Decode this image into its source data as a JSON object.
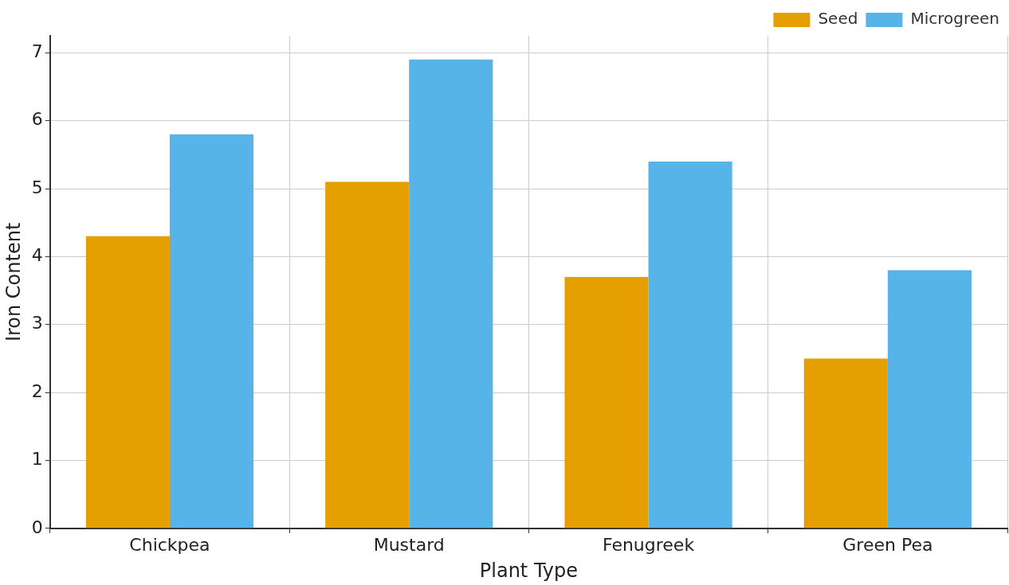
{
  "chart_data": {
    "type": "bar",
    "xlabel": "Plant Type",
    "ylabel": "Iron Content",
    "categories": [
      "Chickpea",
      "Mustard",
      "Fenugreek",
      "Green Pea"
    ],
    "series": [
      {
        "name": "Seed",
        "color": "#e69f00",
        "values": [
          4.3,
          5.1,
          3.7,
          2.5
        ]
      },
      {
        "name": "Microgreen",
        "color": "#56b4e9",
        "values": [
          5.8,
          6.9,
          5.4,
          3.8
        ]
      }
    ],
    "ylim": [
      0,
      7.25
    ],
    "yticks": [
      0,
      1,
      2,
      3,
      4,
      5,
      6,
      7
    ],
    "grid": true,
    "legend": "top right"
  }
}
